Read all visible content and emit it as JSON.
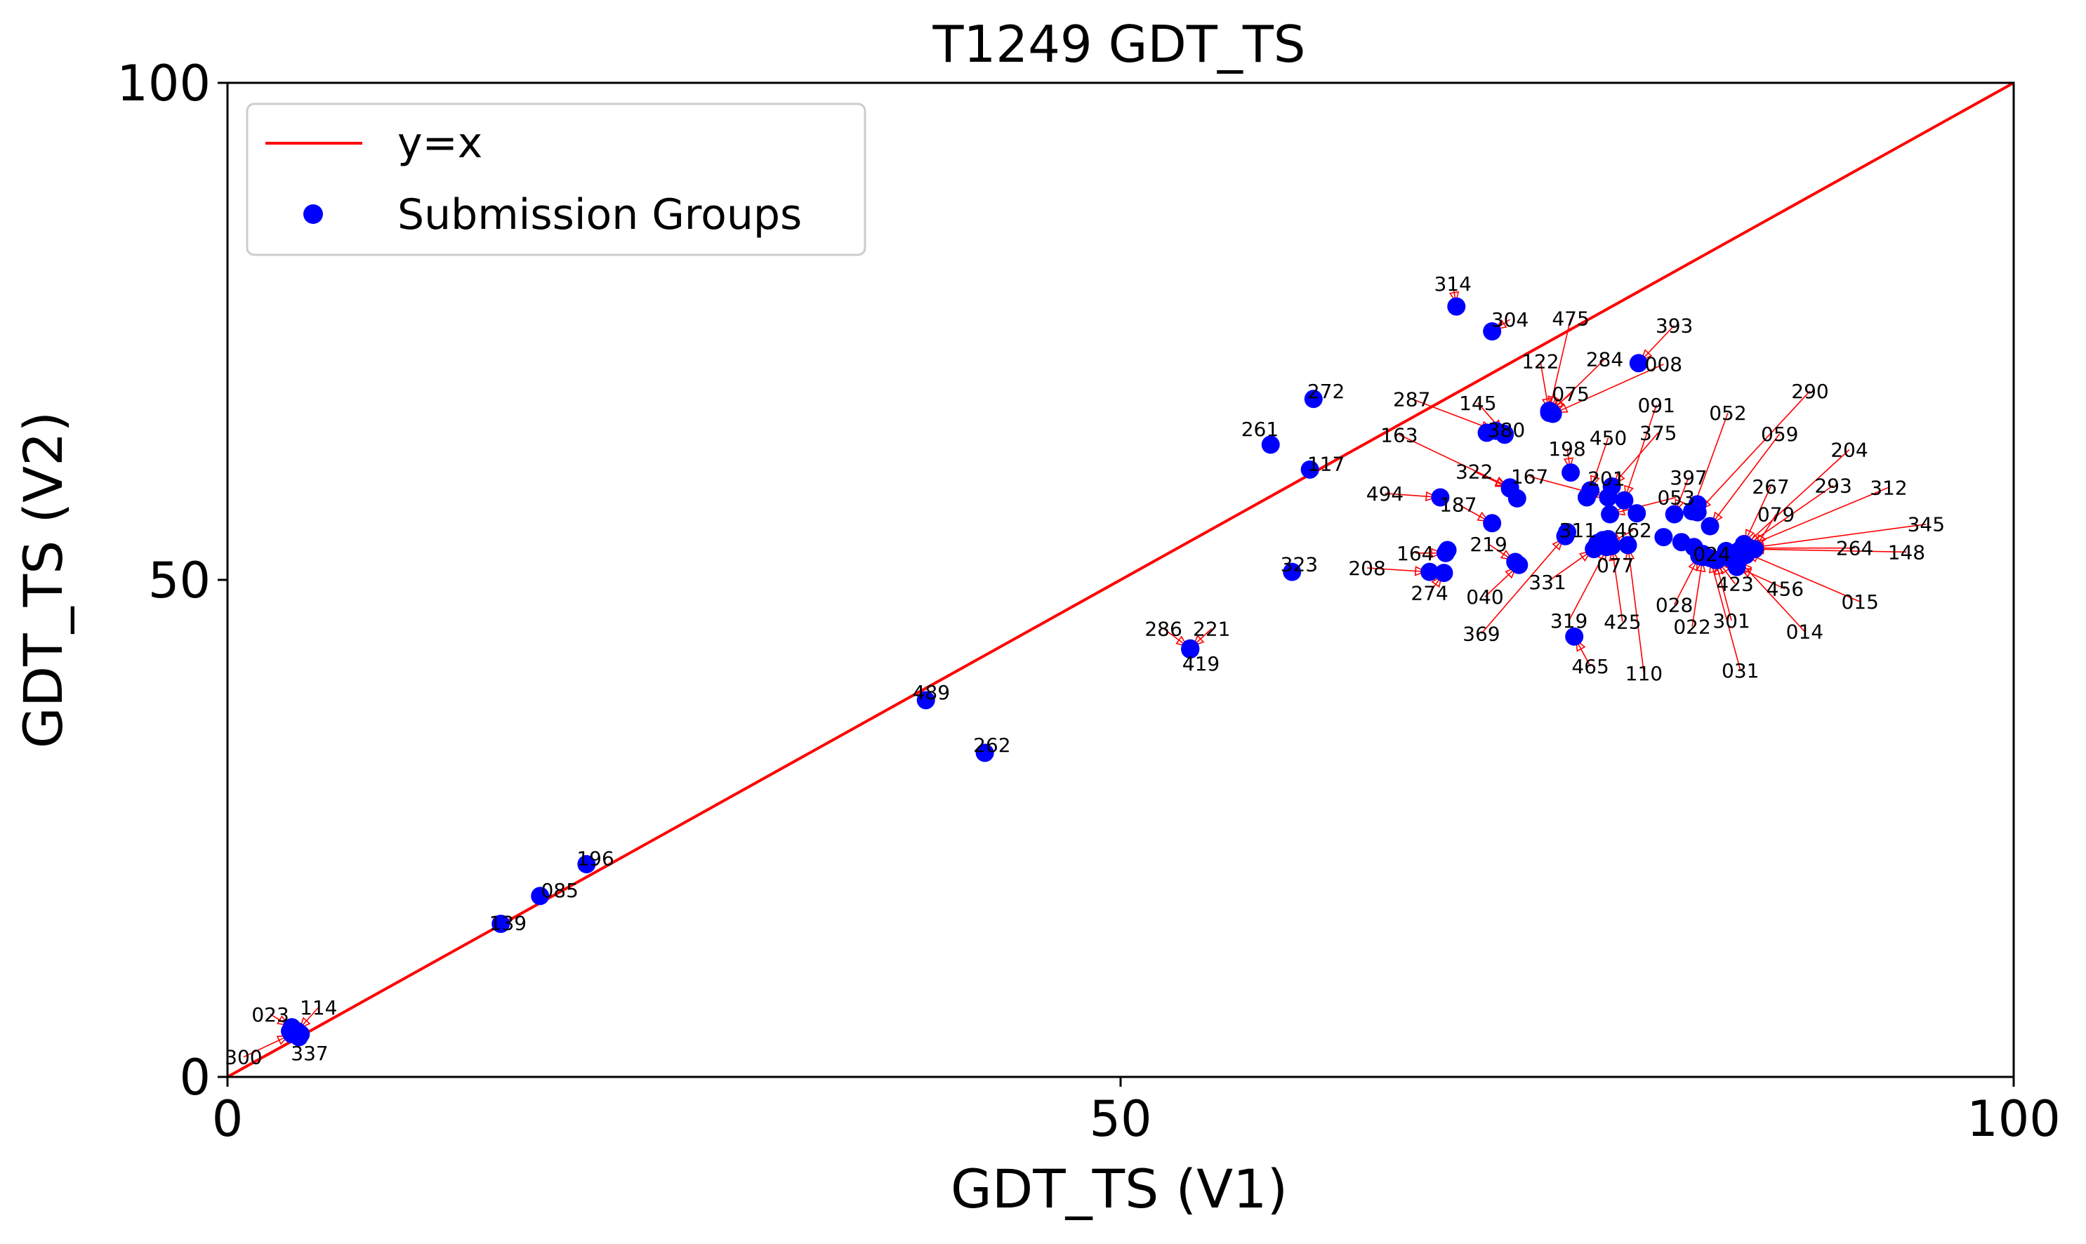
{
  "chart_data": {
    "type": "scatter",
    "title": "T1249 GDT_TS",
    "xlabel": "GDT_TS (V1)",
    "ylabel": "GDT_TS (V2)",
    "xlim": [
      0,
      100
    ],
    "ylim": [
      0,
      100
    ],
    "xticks": [
      "0",
      "50",
      "100"
    ],
    "yticks": [
      "0",
      "50",
      "100"
    ],
    "grid": false,
    "legend_position": "top-left",
    "legend": [
      {
        "name": "y=x",
        "kind": "line",
        "color": "#ff0000"
      },
      {
        "name": "Submission Groups",
        "kind": "marker",
        "color": "#0000ff"
      }
    ],
    "reference_line": {
      "name": "y=x",
      "points": [
        [
          0,
          0
        ],
        [
          100,
          100
        ]
      ],
      "color": "#ff0000"
    },
    "annotation_color": "#ff0000",
    "marker_color": "#0000ff",
    "points": [
      {
        "id": "314",
        "x": 68.8,
        "y": 77.5,
        "lx": 68.6,
        "ly": 79.8
      },
      {
        "id": "304",
        "x": 70.8,
        "y": 75.0,
        "lx": 71.8,
        "ly": 76.2
      },
      {
        "id": "475",
        "x": 74.0,
        "y": 67.0,
        "lx": 75.2,
        "ly": 76.3
      },
      {
        "id": "393",
        "x": 79.0,
        "y": 71.8,
        "lx": 81.0,
        "ly": 75.6
      },
      {
        "id": "284",
        "x": 74.1,
        "y": 66.9,
        "lx": 77.1,
        "ly": 72.2
      },
      {
        "id": "122",
        "x": 74.0,
        "y": 66.8,
        "lx": 73.5,
        "ly": 72.0
      },
      {
        "id": "008",
        "x": 74.2,
        "y": 66.7,
        "lx": 80.4,
        "ly": 71.7
      },
      {
        "id": "075",
        "x": 74.0,
        "y": 67.0,
        "lx": 75.2,
        "ly": 68.7
      },
      {
        "id": "287",
        "x": 71.0,
        "y": 65.0,
        "lx": 66.3,
        "ly": 68.2
      },
      {
        "id": "145",
        "x": 71.5,
        "y": 64.7,
        "lx": 70.0,
        "ly": 67.8
      },
      {
        "id": "272",
        "x": 60.8,
        "y": 68.2,
        "lx": 61.5,
        "ly": 69.0
      },
      {
        "id": "091",
        "x": 78.2,
        "y": 58.0,
        "lx": 80.0,
        "ly": 67.6
      },
      {
        "id": "290",
        "x": 82.3,
        "y": 56.8,
        "lx": 88.6,
        "ly": 69.0
      },
      {
        "id": "052",
        "x": 82.0,
        "y": 56.9,
        "lx": 84.0,
        "ly": 66.8
      },
      {
        "id": "380",
        "x": 71.5,
        "y": 64.6,
        "lx": 71.6,
        "ly": 65.1
      },
      {
        "id": "059",
        "x": 83.0,
        "y": 55.4,
        "lx": 86.9,
        "ly": 64.7
      },
      {
        "id": "375",
        "x": 77.5,
        "y": 59.4,
        "lx": 80.1,
        "ly": 64.8
      },
      {
        "id": "450",
        "x": 76.3,
        "y": 59.0,
        "lx": 77.3,
        "ly": 64.3
      },
      {
        "id": "163",
        "x": 71.8,
        "y": 59.3,
        "lx": 65.6,
        "ly": 64.6
      },
      {
        "id": "261",
        "x": 58.4,
        "y": 63.6,
        "lx": 57.8,
        "ly": 65.2
      },
      {
        "id": "198",
        "x": 75.2,
        "y": 60.8,
        "lx": 75.0,
        "ly": 63.2
      },
      {
        "id": "204",
        "x": 84.6,
        "y": 52.9,
        "lx": 90.8,
        "ly": 63.1
      },
      {
        "id": "117",
        "x": 60.6,
        "y": 61.1,
        "lx": 61.5,
        "ly": 61.7
      },
      {
        "id": "322",
        "x": 71.8,
        "y": 59.2,
        "lx": 69.8,
        "ly": 60.9
      },
      {
        "id": "167",
        "x": 77.3,
        "y": 58.3,
        "lx": 72.9,
        "ly": 60.4
      },
      {
        "id": "201",
        "x": 77.3,
        "y": 58.3,
        "lx": 77.2,
        "ly": 60.2
      },
      {
        "id": "397",
        "x": 81.0,
        "y": 56.6,
        "lx": 81.8,
        "ly": 60.3
      },
      {
        "id": "267",
        "x": 84.9,
        "y": 53.6,
        "lx": 86.4,
        "ly": 59.4
      },
      {
        "id": "293",
        "x": 85.0,
        "y": 53.4,
        "lx": 89.9,
        "ly": 59.5
      },
      {
        "id": "312",
        "x": 85.0,
        "y": 53.3,
        "lx": 93.0,
        "ly": 59.3
      },
      {
        "id": "494",
        "x": 67.9,
        "y": 58.3,
        "lx": 64.8,
        "ly": 58.7
      },
      {
        "id": "187",
        "x": 70.8,
        "y": 55.7,
        "lx": 68.9,
        "ly": 57.6
      },
      {
        "id": "053",
        "x": 77.4,
        "y": 56.6,
        "lx": 81.1,
        "ly": 58.3
      },
      {
        "id": "079",
        "x": 85.5,
        "y": 53.1,
        "lx": 86.7,
        "ly": 56.6
      },
      {
        "id": "311",
        "x": 75.0,
        "y": 54.8,
        "lx": 75.6,
        "ly": 55.0
      },
      {
        "id": "462",
        "x": 77.2,
        "y": 53.5,
        "lx": 78.7,
        "ly": 55.0
      },
      {
        "id": "345",
        "x": 85.2,
        "y": 53.2,
        "lx": 95.1,
        "ly": 55.6
      },
      {
        "id": "219",
        "x": 72.1,
        "y": 51.8,
        "lx": 70.6,
        "ly": 53.6
      },
      {
        "id": "264",
        "x": 85.2,
        "y": 53.2,
        "lx": 91.1,
        "ly": 53.2
      },
      {
        "id": "148",
        "x": 85.2,
        "y": 53.1,
        "lx": 94.0,
        "ly": 52.8
      },
      {
        "id": "164",
        "x": 68.2,
        "y": 52.7,
        "lx": 66.5,
        "ly": 52.7
      },
      {
        "id": "323",
        "x": 59.6,
        "y": 50.8,
        "lx": 60.0,
        "ly": 51.6
      },
      {
        "id": "208",
        "x": 67.3,
        "y": 50.8,
        "lx": 63.8,
        "ly": 51.2
      },
      {
        "id": "077",
        "x": 77.2,
        "y": 53.3,
        "lx": 77.7,
        "ly": 51.5
      },
      {
        "id": "024",
        "x": 82.1,
        "y": 53.3,
        "lx": 83.1,
        "ly": 52.6
      },
      {
        "id": "331",
        "x": 76.5,
        "y": 53.1,
        "lx": 73.9,
        "ly": 49.8
      },
      {
        "id": "423",
        "x": 83.4,
        "y": 52.0,
        "lx": 84.4,
        "ly": 49.6
      },
      {
        "id": "456",
        "x": 84.5,
        "y": 51.3,
        "lx": 87.2,
        "ly": 49.1
      },
      {
        "id": "040",
        "x": 72.3,
        "y": 51.5,
        "lx": 70.4,
        "ly": 48.3
      },
      {
        "id": "274",
        "x": 68.1,
        "y": 50.7,
        "lx": 67.3,
        "ly": 48.7
      },
      {
        "id": "028",
        "x": 82.4,
        "y": 52.4,
        "lx": 81.0,
        "ly": 47.5
      },
      {
        "id": "015",
        "x": 84.9,
        "y": 52.8,
        "lx": 91.4,
        "ly": 47.8
      },
      {
        "id": "319",
        "x": 77.3,
        "y": 53.4,
        "lx": 75.1,
        "ly": 45.9
      },
      {
        "id": "425",
        "x": 77.5,
        "y": 53.4,
        "lx": 78.1,
        "ly": 45.8
      },
      {
        "id": "301",
        "x": 83.3,
        "y": 52.0,
        "lx": 84.2,
        "ly": 45.9
      },
      {
        "id": "022",
        "x": 82.6,
        "y": 52.3,
        "lx": 82.0,
        "ly": 45.3
      },
      {
        "id": "369",
        "x": 74.9,
        "y": 54.4,
        "lx": 70.2,
        "ly": 44.6
      },
      {
        "id": "014",
        "x": 84.6,
        "y": 52.0,
        "lx": 88.3,
        "ly": 44.8
      },
      {
        "id": "465",
        "x": 75.4,
        "y": 44.3,
        "lx": 76.3,
        "ly": 41.3
      },
      {
        "id": "110",
        "x": 78.4,
        "y": 53.5,
        "lx": 79.3,
        "ly": 40.6
      },
      {
        "id": "031",
        "x": 83.0,
        "y": 52.2,
        "lx": 84.7,
        "ly": 40.9
      },
      {
        "id": "286",
        "x": 53.9,
        "y": 43.1,
        "lx": 52.4,
        "ly": 45.1
      },
      {
        "id": "221",
        "x": 53.9,
        "y": 43.1,
        "lx": 55.1,
        "ly": 45.1
      },
      {
        "id": "419",
        "x": 53.9,
        "y": 43.0,
        "lx": 54.5,
        "ly": 41.6
      },
      {
        "id": "489",
        "x": 39.1,
        "y": 37.9,
        "lx": 39.4,
        "ly": 38.7
      },
      {
        "id": "262",
        "x": 42.4,
        "y": 32.6,
        "lx": 42.8,
        "ly": 33.4
      },
      {
        "id": "196",
        "x": 20.1,
        "y": 21.4,
        "lx": 20.6,
        "ly": 22.0
      },
      {
        "id": "085",
        "x": 17.5,
        "y": 18.2,
        "lx": 18.6,
        "ly": 18.8
      },
      {
        "id": "139",
        "x": 15.3,
        "y": 15.4,
        "lx": 15.7,
        "ly": 15.5
      },
      {
        "id": "023",
        "x": 3.6,
        "y": 5.0,
        "lx": 2.4,
        "ly": 6.3
      },
      {
        "id": "114",
        "x": 3.9,
        "y": 4.6,
        "lx": 5.1,
        "ly": 7.0
      },
      {
        "id": "300",
        "x": 3.6,
        "y": 4.3,
        "lx": 0.9,
        "ly": 2.0
      },
      {
        "id": "337",
        "x": 4.1,
        "y": 4.3,
        "lx": 4.6,
        "ly": 2.4
      }
    ],
    "extra_points": [
      {
        "x": 70.5,
        "y": 64.8
      },
      {
        "x": 72.2,
        "y": 58.2
      },
      {
        "x": 68.3,
        "y": 53.0
      },
      {
        "x": 77.3,
        "y": 54.1
      },
      {
        "x": 76.7,
        "y": 53.7
      },
      {
        "x": 77.0,
        "y": 54.0
      },
      {
        "x": 78.9,
        "y": 56.7
      },
      {
        "x": 81.4,
        "y": 53.8
      },
      {
        "x": 82.6,
        "y": 52.6
      },
      {
        "x": 82.3,
        "y": 57.6
      },
      {
        "x": 83.9,
        "y": 52.9
      },
      {
        "x": 85.0,
        "y": 52.5
      },
      {
        "x": 84.2,
        "y": 52.1
      },
      {
        "x": 80.4,
        "y": 54.3
      },
      {
        "x": 76.1,
        "y": 58.3
      },
      {
        "x": 4.0,
        "y": 4.0
      },
      {
        "x": 3.5,
        "y": 4.6
      }
    ]
  }
}
